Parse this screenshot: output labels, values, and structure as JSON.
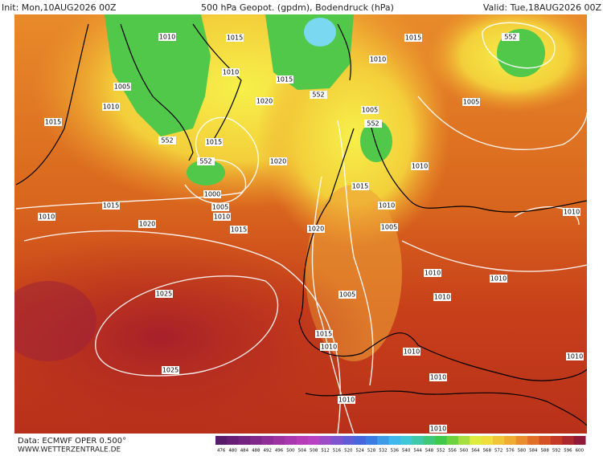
{
  "header": {
    "init": "Init: Mon,10AUG2026 00Z",
    "title": "500 hPa Geopot. (gpdm), Bodendruck (hPa)",
    "valid": "Valid: Tue,18AUG2026 00Z"
  },
  "footer": {
    "source": "Data: ECMWF OPER 0.500°",
    "site": "WWW.WETTERZENTRALE.DE"
  },
  "colorbar": {
    "labels": [
      476,
      480,
      484,
      488,
      492,
      496,
      500,
      504,
      508,
      512,
      516,
      520,
      524,
      528,
      532,
      536,
      540,
      544,
      548,
      552,
      556,
      560,
      564,
      568,
      572,
      576,
      580,
      584,
      588,
      592,
      596,
      600
    ]
  },
  "contour_labels": [
    "1010",
    "1015",
    "1015",
    "1010",
    "1010",
    "1015",
    "1005",
    "1010",
    "1005",
    "1020",
    "1005",
    "1015",
    "1015",
    "1010",
    "1020",
    "1015",
    "1000",
    "1005",
    "1010",
    "1015",
    "1010",
    "1010",
    "1020",
    "1015",
    "1020",
    "1005",
    "1010",
    "1010",
    "1010",
    "1005",
    "1010",
    "1025",
    "1015",
    "1010",
    "1010",
    "1010",
    "1025",
    "1010",
    "1010",
    "1010",
    "552",
    "552",
    "552",
    "552",
    "552"
  ]
}
